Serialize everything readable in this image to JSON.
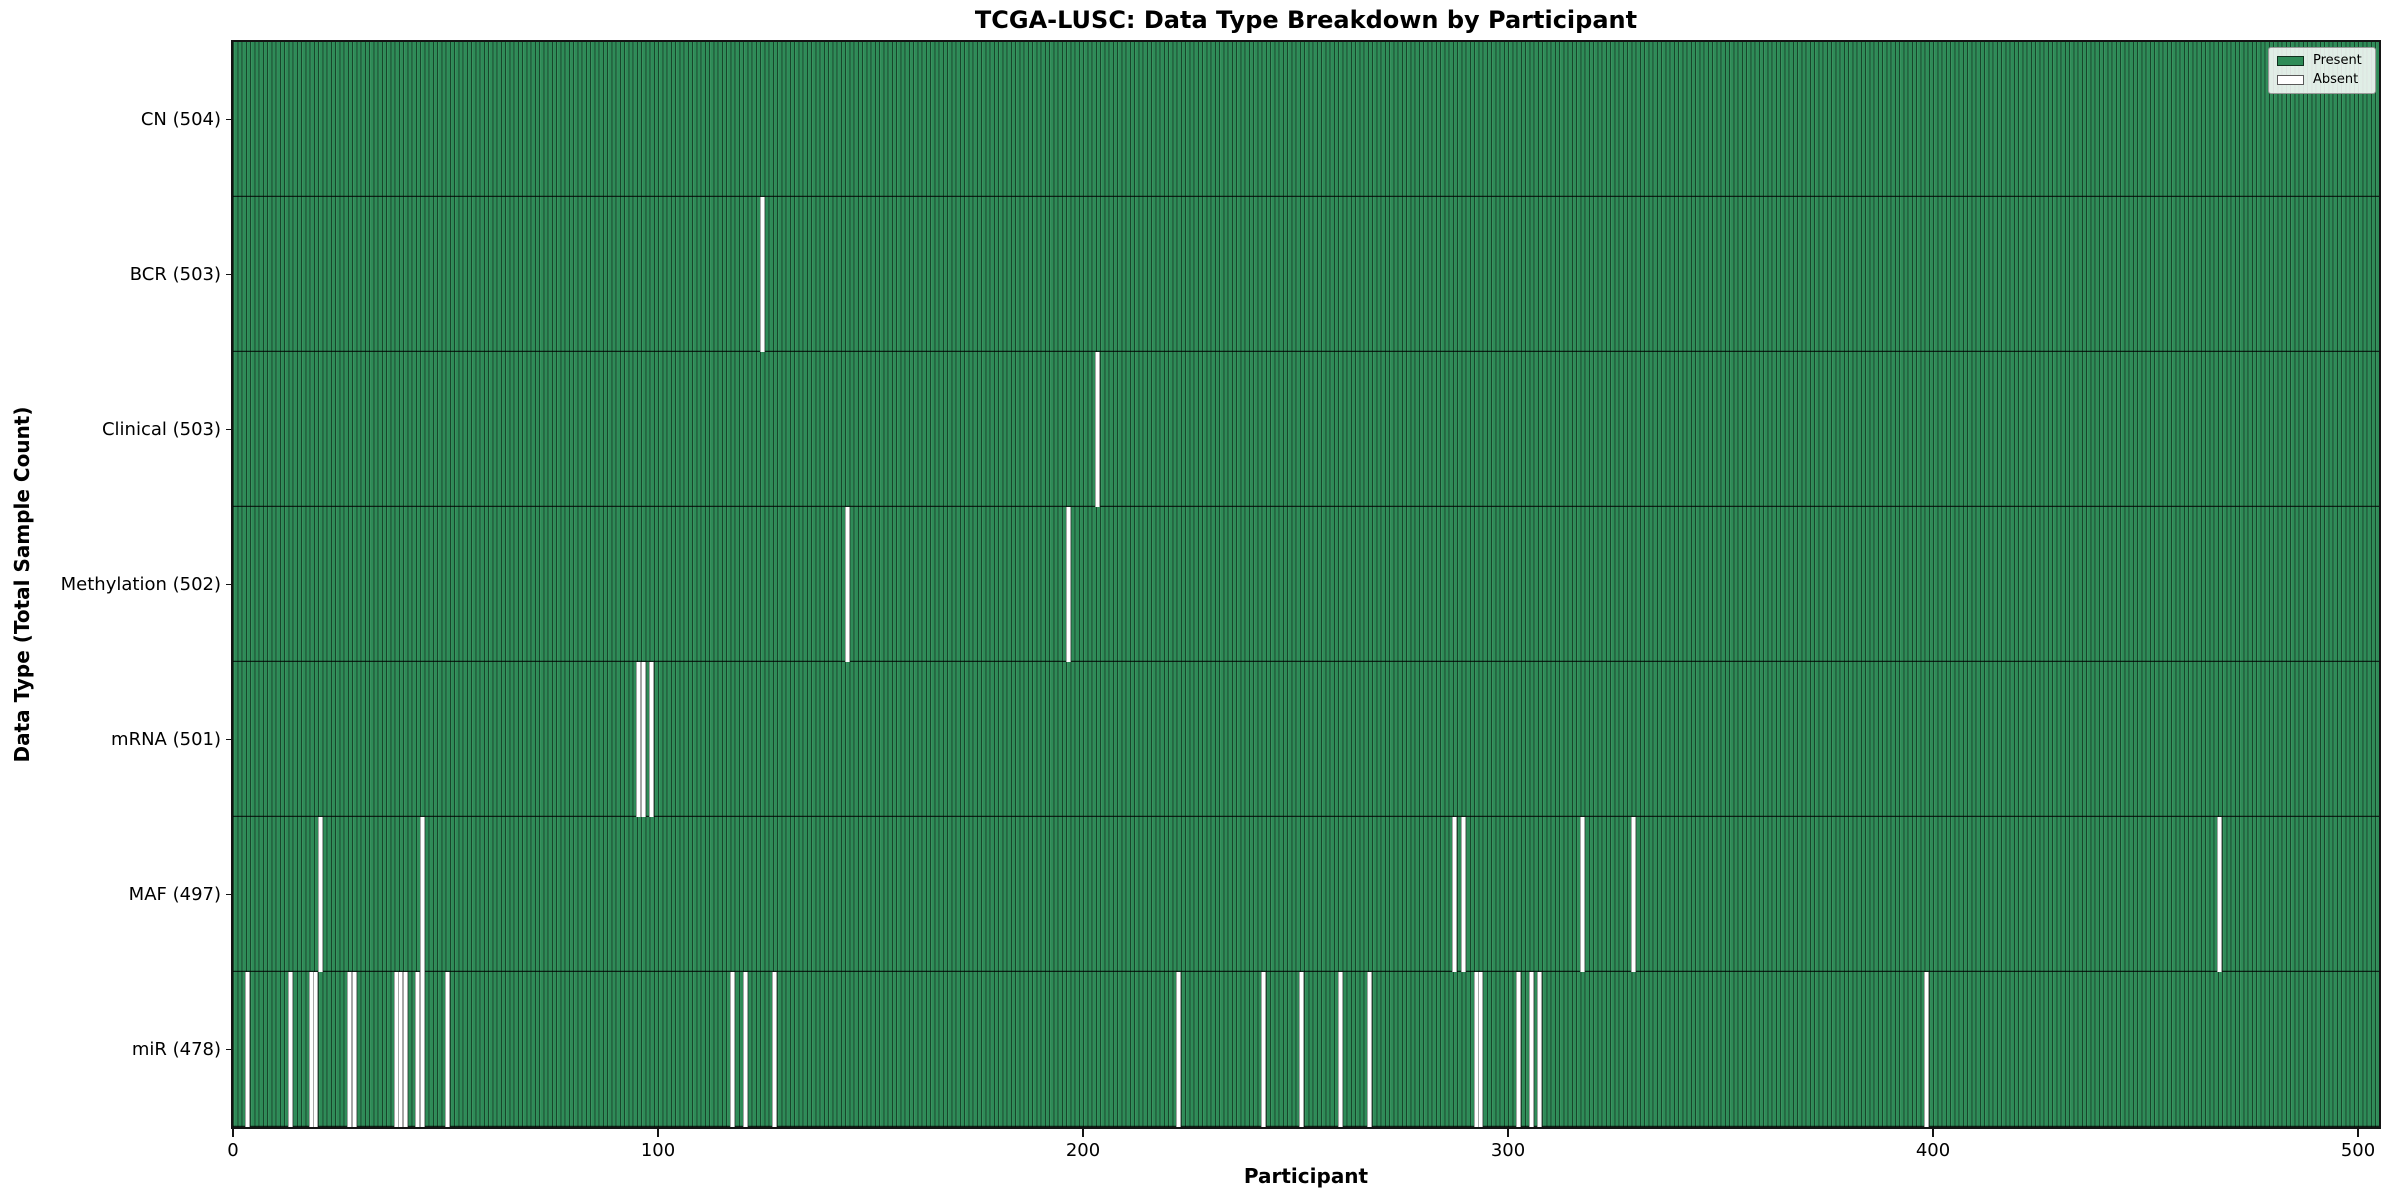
{
  "chart_data": {
    "type": "heatmap",
    "title": "TCGA-LUSC: Data Type Breakdown by Participant",
    "xlabel": "Participant",
    "ylabel": "Data Type (Total Sample Count)",
    "x_ticks": [
      0,
      100,
      200,
      300,
      400,
      500
    ],
    "xlim": [
      0,
      505
    ],
    "n_participants": 504,
    "grid": false,
    "legend_position": "upper right",
    "present_color": "#2e8b57",
    "absent_color": "#ffffff",
    "legend": [
      {
        "label": "Present",
        "color": "#2e8b57"
      },
      {
        "label": "Absent",
        "color": "#ffffff"
      }
    ],
    "rows": [
      {
        "name": "CN",
        "label": "CN (504)",
        "total": 504,
        "absent": []
      },
      {
        "name": "BCR",
        "label": "BCR (503)",
        "total": 503,
        "absent": [
          124
        ]
      },
      {
        "name": "Clinical",
        "label": "Clinical (503)",
        "total": 503,
        "absent": [
          203
        ]
      },
      {
        "name": "Methylation",
        "label": "Methylation (502)",
        "total": 502,
        "absent": [
          144,
          196
        ]
      },
      {
        "name": "mRNA",
        "label": "mRNA (501)",
        "total": 501,
        "absent": [
          95,
          96,
          98
        ]
      },
      {
        "name": "MAF",
        "label": "MAF (497)",
        "total": 497,
        "absent": [
          20,
          44,
          287,
          289,
          317,
          329,
          467
        ]
      },
      {
        "name": "miR",
        "label": "miR (478)",
        "total": 478,
        "absent": [
          3,
          13,
          18,
          19,
          27,
          28,
          38,
          39,
          40,
          43,
          44,
          50,
          117,
          120,
          127,
          222,
          242,
          251,
          260,
          267,
          292,
          293,
          302,
          305,
          307,
          398
        ]
      }
    ]
  }
}
